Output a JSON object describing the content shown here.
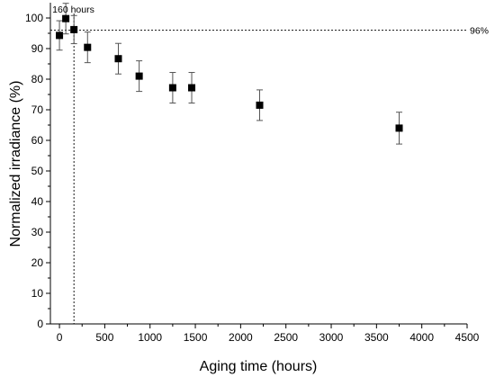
{
  "chart_data": {
    "type": "scatter",
    "xlabel": "Aging time (hours)",
    "ylabel": "Normalized irradiance (%)",
    "xlim": [
      -100,
      4500
    ],
    "ylim": [
      0,
      105
    ],
    "xticks": [
      0,
      500,
      1000,
      1500,
      2000,
      2500,
      3000,
      3500,
      4000,
      4500
    ],
    "yticks": [
      0,
      10,
      20,
      30,
      40,
      50,
      60,
      70,
      80,
      90,
      100
    ],
    "marker": "square",
    "x": [
      0,
      70,
      160,
      310,
      650,
      880,
      1250,
      1460,
      2210,
      3750
    ],
    "y": [
      94.3,
      99.8,
      96.2,
      90.4,
      86.7,
      81.0,
      77.2,
      77.2,
      71.5,
      64.0
    ],
    "error": [
      4.8,
      5.0,
      4.6,
      5.0,
      5.0,
      5.0,
      5.0,
      5.0,
      5.0,
      5.2
    ],
    "annotations": {
      "vline": {
        "x": 160,
        "label": "160 hours"
      },
      "hline": {
        "y": 96,
        "label": "96%"
      }
    },
    "grid": false
  }
}
